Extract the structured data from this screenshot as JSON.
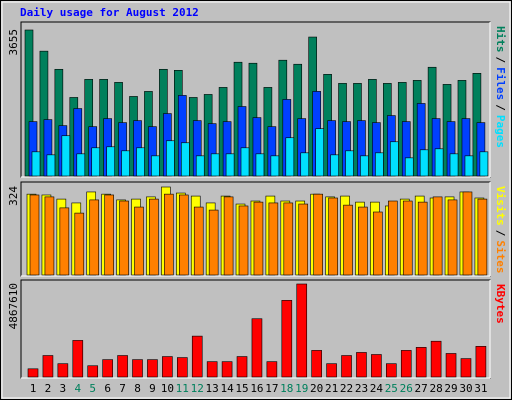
{
  "chart_data": [
    {
      "type": "bar",
      "title": "Daily usage for August 2012",
      "categories": [
        "1",
        "2",
        "3",
        "4",
        "5",
        "6",
        "7",
        "8",
        "9",
        "10",
        "11",
        "12",
        "13",
        "14",
        "15",
        "16",
        "17",
        "18",
        "19",
        "20",
        "21",
        "22",
        "23",
        "24",
        "25",
        "26",
        "27",
        "28",
        "29",
        "30",
        "31"
      ],
      "category_colors": [
        "#000000",
        "#000000",
        "#000000",
        "#00805c",
        "#00805c",
        "#000000",
        "#000000",
        "#000000",
        "#000000",
        "#000000",
        "#00805c",
        "#00805c",
        "#000000",
        "#000000",
        "#000000",
        "#000000",
        "#000000",
        "#00805c",
        "#00805c",
        "#000000",
        "#000000",
        "#000000",
        "#000000",
        "#000000",
        "#00805c",
        "#00805c",
        "#000000",
        "#000000",
        "#000000",
        "#000000",
        "#000000"
      ],
      "legend_separator": "/",
      "series": [
        {
          "name": "Hits",
          "color": "#00805c",
          "values": [
            3655,
            3129,
            2678,
            1978,
            2428,
            2428,
            2353,
            2003,
            2128,
            2678,
            2653,
            1978,
            2053,
            2228,
            2854,
            2829,
            2228,
            2904,
            2804,
            3480,
            2553,
            2328,
            2328,
            2428,
            2328,
            2353,
            2403,
            2729,
            2303,
            2403,
            2578
          ]
        },
        {
          "name": "Files",
          "color": "#0040ff",
          "values": [
            1377,
            1427,
            1277,
            1702,
            1252,
            1452,
            1352,
            1402,
            1252,
            1577,
            2028,
            1402,
            1327,
            1377,
            1752,
            1477,
            1252,
            1928,
            1452,
            2128,
            1402,
            1377,
            1402,
            1352,
            1527,
            1377,
            1828,
            1452,
            1377,
            1452,
            1352
          ]
        },
        {
          "name": "Pages",
          "color": "#00e0ff",
          "values": [
            626,
            551,
            1026,
            576,
            726,
            751,
            651,
            726,
            526,
            901,
            851,
            526,
            576,
            576,
            726,
            576,
            526,
            976,
            601,
            1201,
            551,
            651,
            526,
            601,
            876,
            476,
            676,
            701,
            576,
            526,
            626
          ]
        }
      ],
      "ylim": [
        0,
        3655
      ],
      "yticks": [
        3655
      ]
    },
    {
      "type": "bar",
      "legend_separator": "/",
      "series": [
        {
          "name": "Visits",
          "color": "#ffff00",
          "values": [
            298,
            295,
            280,
            266,
            306,
            298,
            277,
            280,
            288,
            324,
            302,
            291,
            266,
            291,
            262,
            273,
            291,
            273,
            273,
            298,
            288,
            291,
            269,
            269,
            255,
            280,
            291,
            284,
            288,
            306,
            284
          ]
        },
        {
          "name": "Sites",
          "color": "#ff8000",
          "values": [
            295,
            288,
            248,
            229,
            277,
            295,
            273,
            251,
            280,
            298,
            295,
            251,
            240,
            288,
            255,
            269,
            266,
            266,
            262,
            298,
            284,
            258,
            251,
            233,
            273,
            273,
            269,
            288,
            277,
            306,
            280
          ]
        }
      ],
      "ylim": [
        0,
        324
      ],
      "yticks": [
        324
      ]
    },
    {
      "type": "bar",
      "series": [
        {
          "name": "KBytes",
          "color": "#ff0000",
          "values": [
            476000,
            1164000,
            741000,
            1946000,
            635000,
            952000,
            1164000,
            952000,
            952000,
            1111000,
            1058000,
            2169000,
            847000,
            847000,
            1111000,
            3069000,
            847000,
            4021000,
            4867610,
            1429000,
            741000,
            1164000,
            1323000,
            1217000,
            741000,
            1429000,
            1587000,
            1905000,
            1270000,
            1005000,
            1640000
          ]
        }
      ],
      "ylim": [
        0,
        4867610
      ],
      "yticks": [
        4867610
      ]
    }
  ]
}
